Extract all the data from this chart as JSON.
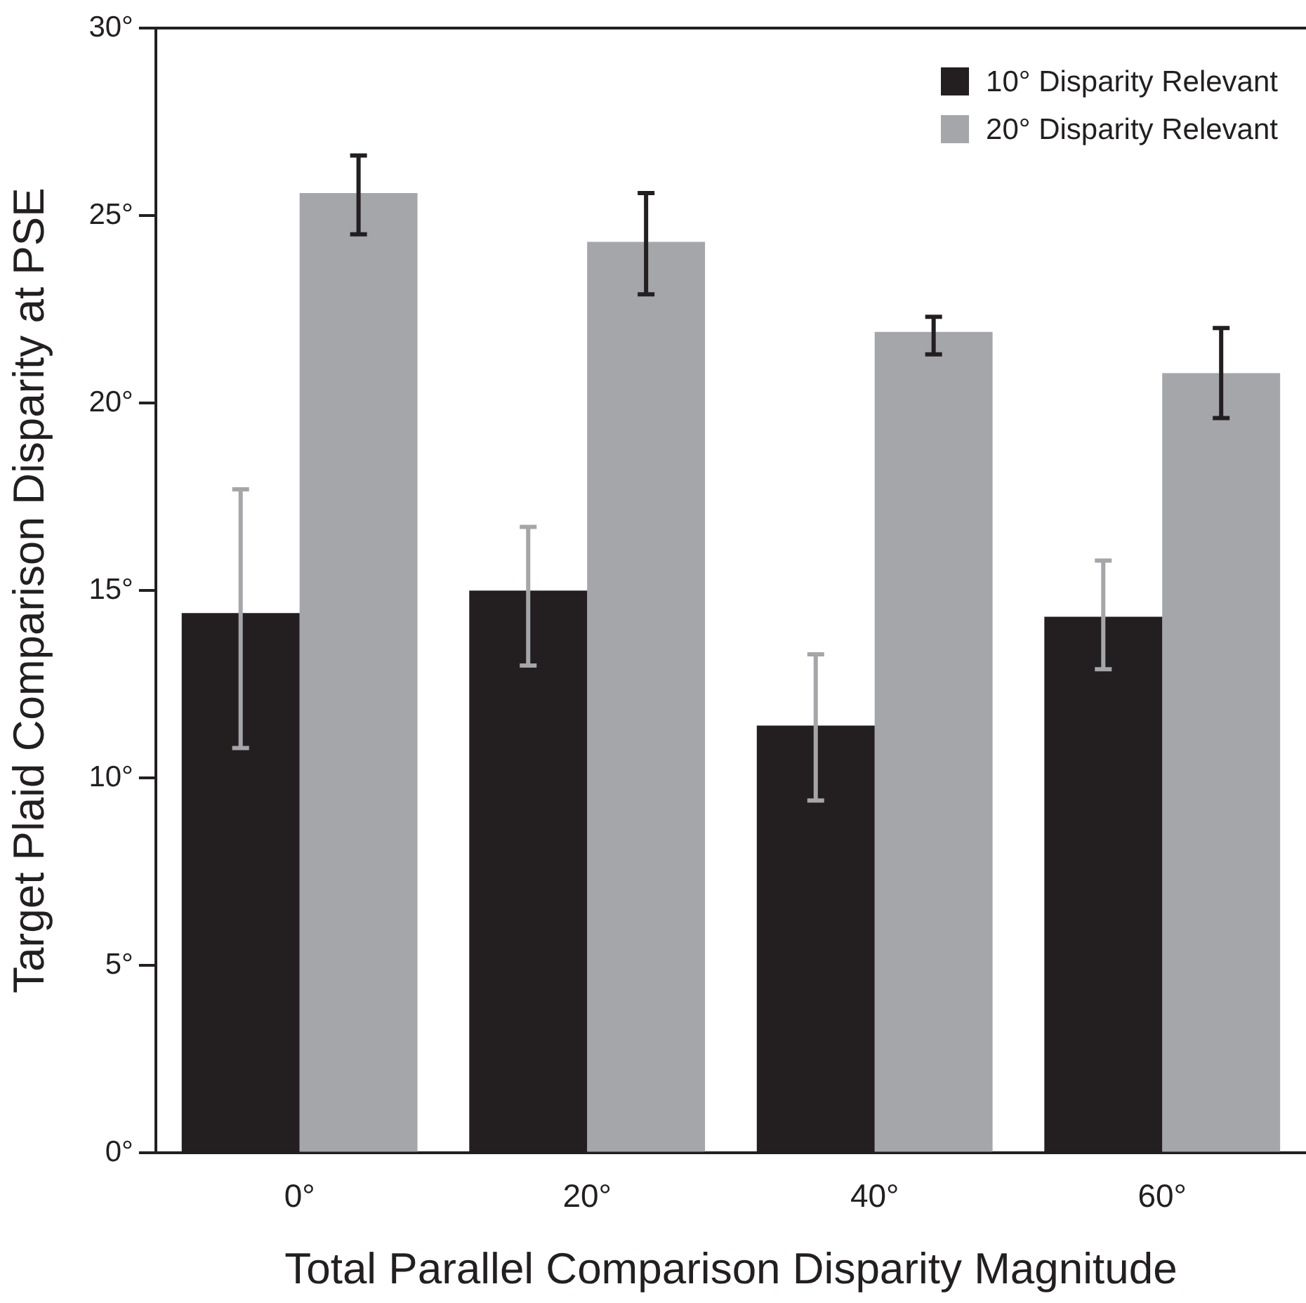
{
  "chart_data": {
    "type": "bar",
    "xlabel": "Total Parallel Comparison Disparity Magnitude",
    "ylabel": "Target Plaid Comparison Disparity at PSE",
    "categories": [
      "0°",
      "20°",
      "40°",
      "60°"
    ],
    "series": [
      {
        "name": "10° Disparity Relevant",
        "color": "#231f20",
        "values": [
          14.4,
          15.0,
          11.4,
          14.3
        ],
        "errors": [
          [
            10.8,
            17.7
          ],
          [
            13.0,
            16.7
          ],
          [
            9.4,
            13.3
          ],
          [
            12.9,
            15.8
          ]
        ]
      },
      {
        "name": "20° Disparity Relevant",
        "color": "#a5a6aa",
        "values": [
          25.6,
          24.3,
          21.9,
          20.8
        ],
        "errors": [
          [
            24.5,
            26.6
          ],
          [
            22.9,
            25.6
          ],
          [
            21.3,
            22.3
          ],
          [
            19.6,
            22.0
          ]
        ]
      }
    ],
    "ylim": [
      0,
      30
    ],
    "yticks": [
      {
        "value": 0,
        "label": "0°"
      },
      {
        "value": 5,
        "label": "5°"
      },
      {
        "value": 10,
        "label": "10°"
      },
      {
        "value": 15,
        "label": "15°"
      },
      {
        "value": 20,
        "label": "20°"
      },
      {
        "value": 25,
        "label": "25°"
      },
      {
        "value": 30,
        "label": "30°"
      }
    ],
    "grid": false,
    "legend": "top right"
  }
}
